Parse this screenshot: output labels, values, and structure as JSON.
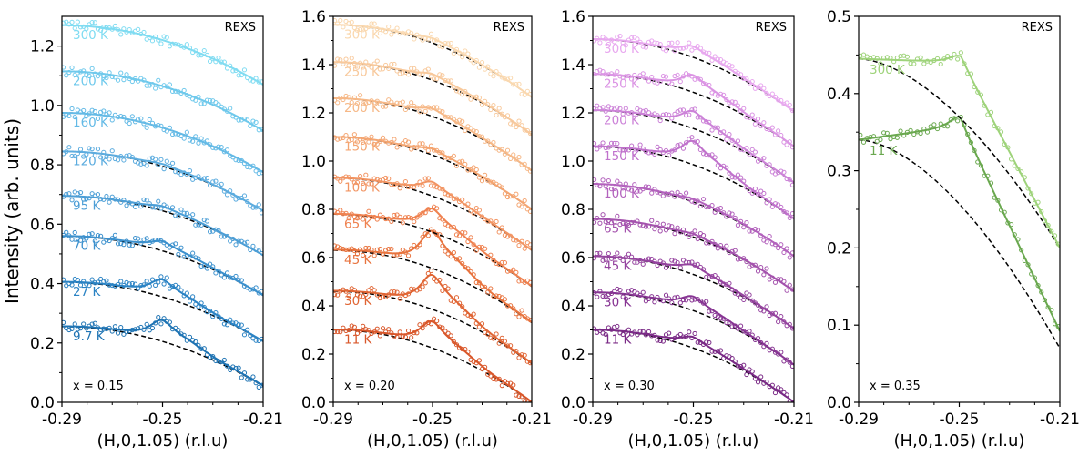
{
  "figure": {
    "ylabel": "Intensity (arb. units)"
  },
  "chart_data": [
    {
      "type": "scatter",
      "panel": "x015",
      "composition_label": "x = 0.15",
      "corner_label": "REXS",
      "xlabel": "(H,0,1.05) (r.l.u)",
      "xlim": [
        -0.29,
        -0.21
      ],
      "ylim": [
        0.0,
        1.3
      ],
      "xticks": [
        -0.29,
        -0.25,
        -0.21
      ],
      "yticks": [
        0.0,
        0.2,
        0.4,
        0.6,
        0.8,
        1.0,
        1.2
      ],
      "series": [
        {
          "name": "9.7 K",
          "offset": 0.255,
          "peak": 0.055,
          "color": "#1f74b4",
          "seed": 11
        },
        {
          "name": "27 K",
          "offset": 0.405,
          "peak": 0.045,
          "color": "#2b83c4",
          "seed": 12
        },
        {
          "name": "70 K",
          "offset": 0.56,
          "peak": 0.025,
          "color": "#3b90cd",
          "seed": 13
        },
        {
          "name": "95 K",
          "offset": 0.695,
          "peak": 0.012,
          "color": "#4c9ed6",
          "seed": 14
        },
        {
          "name": "120 K",
          "offset": 0.845,
          "peak": 0.006,
          "color": "#5cacdf",
          "seed": 15
        },
        {
          "name": "160 K",
          "offset": 0.975,
          "peak": 0.0,
          "color": "#64bae6",
          "seed": 16
        },
        {
          "name": "200 K",
          "offset": 1.115,
          "peak": 0.0,
          "color": "#6fc9ec",
          "seed": 17
        },
        {
          "name": "300 K",
          "offset": 1.27,
          "peak": 0.0,
          "color": "#80dcf2",
          "seed": 18
        }
      ]
    },
    {
      "type": "scatter",
      "panel": "x020",
      "composition_label": "x = 0.20",
      "corner_label": "REXS",
      "xlabel": "(H,0,1.05) (r.l.u)",
      "xlim": [
        -0.29,
        -0.21
      ],
      "ylim": [
        0.0,
        1.6
      ],
      "xticks": [
        -0.29,
        -0.25,
        -0.21
      ],
      "yticks": [
        0.0,
        0.2,
        0.4,
        0.6,
        0.8,
        1.0,
        1.2,
        1.4,
        1.6
      ],
      "series": [
        {
          "name": "11 K",
          "offset": 0.3,
          "peak": 0.085,
          "color": "#d9572a",
          "seed": 21
        },
        {
          "name": "30 K",
          "offset": 0.46,
          "peak": 0.11,
          "color": "#e06534",
          "seed": 22
        },
        {
          "name": "45 K",
          "offset": 0.63,
          "peak": 0.12,
          "color": "#e8743f",
          "seed": 23
        },
        {
          "name": "65 K",
          "offset": 0.78,
          "peak": 0.075,
          "color": "#ef8250",
          "seed": 24
        },
        {
          "name": "100 K",
          "offset": 0.93,
          "peak": 0.045,
          "color": "#f29462",
          "seed": 25
        },
        {
          "name": "150 K",
          "offset": 1.1,
          "peak": 0.02,
          "color": "#f4a571",
          "seed": 26
        },
        {
          "name": "200 K",
          "offset": 1.26,
          "peak": 0.025,
          "color": "#f6b887",
          "seed": 27
        },
        {
          "name": "250 K",
          "offset": 1.41,
          "peak": 0.02,
          "color": "#f8c99c",
          "seed": 28
        },
        {
          "name": "300 K",
          "offset": 1.565,
          "peak": 0.015,
          "color": "#fad8af",
          "seed": 29
        }
      ]
    },
    {
      "type": "scatter",
      "panel": "x030",
      "composition_label": "x = 0.30",
      "corner_label": "REXS",
      "xlabel": "(H,0,1.05) (r.l.u)",
      "xlim": [
        -0.29,
        -0.21
      ],
      "ylim": [
        0.0,
        1.6
      ],
      "xticks": [
        -0.29,
        -0.25,
        -0.21
      ],
      "yticks": [
        0.0,
        0.2,
        0.4,
        0.6,
        0.8,
        1.0,
        1.2,
        1.4,
        1.6
      ],
      "series": [
        {
          "name": "11 K",
          "offset": 0.3,
          "peak": 0.035,
          "color": "#7a2a86",
          "seed": 31
        },
        {
          "name": "30 K",
          "offset": 0.455,
          "peak": 0.045,
          "color": "#873593",
          "seed": 32
        },
        {
          "name": "45 K",
          "offset": 0.605,
          "peak": 0.03,
          "color": "#95439f",
          "seed": 33
        },
        {
          "name": "65 K",
          "offset": 0.76,
          "peak": 0.01,
          "color": "#a452ad",
          "seed": 34
        },
        {
          "name": "100 K",
          "offset": 0.905,
          "peak": 0.01,
          "color": "#b362bd",
          "seed": 35
        },
        {
          "name": "150 K",
          "offset": 1.06,
          "peak": 0.075,
          "color": "#c072cc",
          "seed": 36
        },
        {
          "name": "200 K",
          "offset": 1.21,
          "peak": 0.055,
          "color": "#cc82d8",
          "seed": 37
        },
        {
          "name": "250 K",
          "offset": 1.36,
          "peak": 0.055,
          "color": "#db94e4",
          "seed": 38
        },
        {
          "name": "300 K",
          "offset": 1.505,
          "peak": 0.035,
          "color": "#e8a8ef",
          "seed": 39
        }
      ]
    },
    {
      "type": "scatter",
      "panel": "x035",
      "composition_label": "x = 0.35",
      "corner_label": "REXS",
      "xlabel": "(H,0,1.05) (r.l.u)",
      "xlim": [
        -0.29,
        -0.21
      ],
      "ylim": [
        0.0,
        0.5
      ],
      "xticks": [
        -0.29,
        -0.25,
        -0.21
      ],
      "yticks": [
        0.0,
        0.1,
        0.2,
        0.3,
        0.4,
        0.5
      ],
      "series": [
        {
          "name": "11 K",
          "offset": 0.34,
          "peak": 0.022,
          "color": "#6aa84f",
          "seed": 41
        },
        {
          "name": "300 K",
          "offset": 0.445,
          "peak": 0.015,
          "color": "#9ed37a",
          "seed": 42
        }
      ]
    }
  ]
}
